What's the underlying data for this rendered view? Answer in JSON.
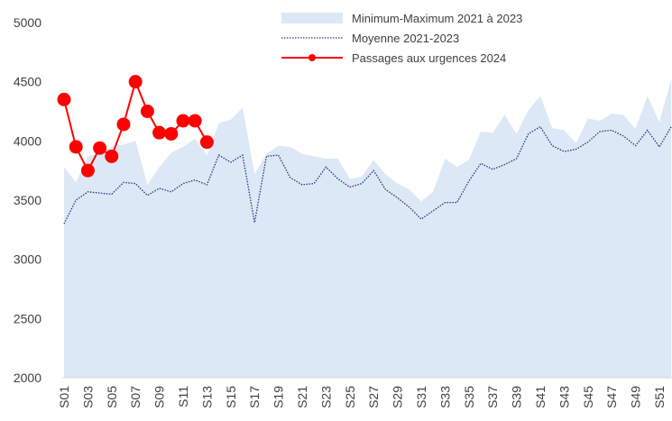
{
  "chart_data": {
    "type": "line",
    "categories": [
      "S01",
      null,
      "S03",
      null,
      "S05",
      null,
      "S07",
      null,
      "S09",
      null,
      "S11",
      null,
      "S13",
      null,
      "S15",
      null,
      "S17",
      null,
      "S19",
      null,
      "S21",
      null,
      "S23",
      null,
      "S25",
      null,
      "S27",
      null,
      "S29",
      null,
      "S31",
      null,
      "S33",
      null,
      "S35",
      null,
      "S37",
      null,
      "S39",
      null,
      "S41",
      null,
      "S43",
      null,
      "S45",
      null,
      "S47",
      null,
      "S49",
      null,
      "S51",
      null
    ],
    "series": [
      {
        "name": "Minimum-Maximum 2021 à 2023",
        "style": "area",
        "color": "#dce8f5",
        "values": [
          3780,
          3650,
          3870,
          3900,
          3950,
          3970,
          4000,
          3630,
          3780,
          3900,
          3950,
          4020,
          3880,
          4150,
          4180,
          4280,
          3720,
          3890,
          3960,
          3950,
          3890,
          3870,
          3850,
          3850,
          3680,
          3700,
          3840,
          3720,
          3640,
          3590,
          3490,
          3570,
          3850,
          3780,
          3840,
          4080,
          4070,
          4220,
          4060,
          4260,
          4380,
          4110,
          4090,
          3980,
          4190,
          4170,
          4230,
          4220,
          4100,
          4380,
          4160,
          4520
        ]
      },
      {
        "name": "Moyenne 2021-2023",
        "style": "dotted",
        "color": "#1f3a7a",
        "values": [
          3300,
          3500,
          3570,
          3560,
          3550,
          3650,
          3640,
          3540,
          3600,
          3570,
          3640,
          3670,
          3630,
          3880,
          3820,
          3880,
          3310,
          3870,
          3880,
          3690,
          3630,
          3640,
          3780,
          3680,
          3610,
          3640,
          3750,
          3590,
          3520,
          3440,
          3340,
          3410,
          3480,
          3480,
          3660,
          3810,
          3760,
          3800,
          3850,
          4060,
          4120,
          3960,
          3910,
          3930,
          3990,
          4080,
          4090,
          4040,
          3960,
          4090,
          3950,
          4120
        ]
      },
      {
        "name": "Passages aux urgences 2024",
        "style": "markers",
        "color": "#ff0000",
        "values": [
          4350,
          3950,
          3750,
          3940,
          3870,
          4140,
          4500,
          4250,
          4070,
          4060,
          4170,
          4170,
          3990,
          null,
          null,
          null,
          null,
          null,
          null,
          null,
          null,
          null,
          null,
          null,
          null,
          null,
          null,
          null,
          null,
          null,
          null,
          null,
          null,
          null,
          null,
          null,
          null,
          null,
          null,
          null,
          null,
          null,
          null,
          null,
          null,
          null,
          null,
          null,
          null,
          null,
          null,
          null
        ]
      }
    ],
    "ylim": [
      2000,
      5000
    ],
    "yticks": [
      2000,
      2500,
      3000,
      3500,
      4000,
      4500,
      5000
    ],
    "grid": false,
    "legend": "top-right"
  }
}
